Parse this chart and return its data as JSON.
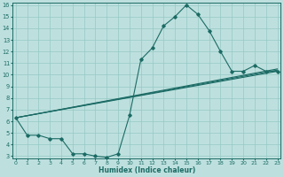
{
  "xlabel": "Humidex (Indice chaleur)",
  "xlim": [
    -0.3,
    23.3
  ],
  "ylim": [
    2.8,
    16.2
  ],
  "xticks": [
    0,
    1,
    2,
    3,
    4,
    5,
    6,
    7,
    8,
    9,
    10,
    11,
    12,
    13,
    14,
    15,
    16,
    17,
    18,
    19,
    20,
    21,
    22,
    23
  ],
  "yticks": [
    3,
    4,
    5,
    6,
    7,
    8,
    9,
    10,
    11,
    12,
    13,
    14,
    15,
    16
  ],
  "bg_color": "#bde0de",
  "grid_color": "#96c8c5",
  "line_color": "#1c6b65",
  "line1_x": [
    0,
    1,
    2,
    3,
    4,
    5,
    6,
    7,
    8,
    9,
    10,
    11,
    12,
    13,
    14,
    15,
    16,
    17,
    18,
    19,
    20,
    21,
    22,
    23
  ],
  "line1_y": [
    6.3,
    4.8,
    4.8,
    4.5,
    4.5,
    3.2,
    3.2,
    3.0,
    2.9,
    3.2,
    6.5,
    11.3,
    12.3,
    14.2,
    15.0,
    16.0,
    15.2,
    13.8,
    12.0,
    10.3,
    10.3,
    10.8,
    10.3,
    10.3
  ],
  "line2_x": [
    0,
    23
  ],
  "line2_y": [
    6.3,
    10.3
  ],
  "line3_x": [
    0,
    23
  ],
  "line3_y": [
    6.3,
    10.4
  ],
  "line4_x": [
    0,
    23
  ],
  "line4_y": [
    6.3,
    10.5
  ]
}
